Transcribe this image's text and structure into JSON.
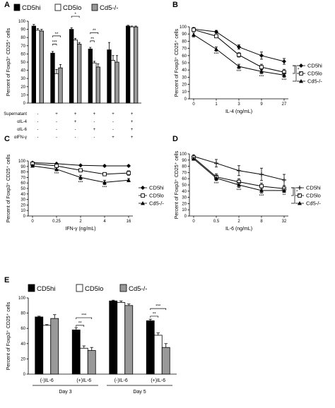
{
  "figure": {
    "panel_labels": [
      "A",
      "B",
      "C",
      "D",
      "E"
    ],
    "colors": {
      "cd5hi": "#000000",
      "cd5lo": "#ffffff",
      "cd5ko": "#999999",
      "edge": "#000000"
    }
  },
  "chart_data": [
    {
      "panel": "A",
      "type": "bar",
      "ylabel": "Percent of Foxp3⁺ CD25⁺ cells",
      "ylim": [
        0,
        100
      ],
      "yticks": [
        "0",
        "10",
        "20",
        "30",
        "40",
        "50",
        "60",
        "70",
        "80",
        "90",
        "100"
      ],
      "legend": [
        "CD5hi",
        "CD5lo",
        "Cd5-/-"
      ],
      "row_labels": [
        "Supernatant",
        "αIL-4",
        "αIL-6",
        "αIFN-γ"
      ],
      "condition_table": [
        [
          "-",
          "-",
          "-",
          "-"
        ],
        [
          "+",
          "-",
          "-",
          "-"
        ],
        [
          "+",
          "+",
          "-",
          "-"
        ],
        [
          "+",
          "-",
          "+",
          "-"
        ],
        [
          "+",
          "-",
          "-",
          "+"
        ],
        [
          "+",
          "+",
          "+",
          "+"
        ]
      ],
      "series": [
        {
          "name": "CD5hi",
          "values": [
            94,
            61,
            90,
            66,
            65,
            94
          ],
          "errors": [
            2,
            2,
            2,
            2,
            9,
            1
          ]
        },
        {
          "name": "CD5lo",
          "values": [
            89,
            36,
            77,
            49,
            52,
            93
          ],
          "errors": [
            2,
            5,
            2,
            2,
            6,
            1
          ]
        },
        {
          "name": "Cd5-/-",
          "values": [
            88,
            43,
            72,
            44,
            50,
            93
          ],
          "errors": [
            2,
            4,
            2,
            4,
            8,
            1
          ]
        }
      ],
      "significance": [
        {
          "group": 1,
          "from": 0,
          "to": 1,
          "label": "***",
          "y": 72
        },
        {
          "group": 1,
          "from": 0,
          "to": 2,
          "label": "**",
          "y": 82
        },
        {
          "group": 2,
          "from": 0,
          "to": 2,
          "label": "*",
          "y": 106
        },
        {
          "group": 3,
          "from": 0,
          "to": 1,
          "label": "**",
          "y": 76
        },
        {
          "group": 3,
          "from": 0,
          "to": 2,
          "label": "**",
          "y": 86
        }
      ]
    },
    {
      "panel": "B",
      "type": "line",
      "xlabel": "IL-4 (ng/mL)",
      "ylabel": "Percent of Foxp3⁺ CD25⁺ cells",
      "x": [
        "0",
        "1",
        "3",
        "9",
        "27"
      ],
      "ylim": [
        0,
        100
      ],
      "yticks": [
        "0",
        "10",
        "20",
        "30",
        "40",
        "50",
        "60",
        "70",
        "80",
        "90",
        "100"
      ],
      "series": [
        {
          "name": "CD5hi",
          "marker": "diamond",
          "values": [
            97,
            93,
            72,
            60,
            52
          ],
          "errors": [
            2,
            2,
            3,
            5,
            4
          ]
        },
        {
          "name": "CD5lo",
          "marker": "square",
          "values": [
            96,
            87,
            61,
            44,
            37
          ],
          "errors": [
            2,
            2,
            3,
            4,
            4
          ]
        },
        {
          "name": "Cd5-/-",
          "marker": "triangle",
          "values": [
            89,
            69,
            45,
            38,
            33
          ],
          "errors": [
            3,
            3,
            3,
            3,
            3
          ]
        }
      ],
      "annotations": [
        "***",
        "***",
        "***",
        "***"
      ],
      "bracket_labels": [
        "*",
        "*"
      ]
    },
    {
      "panel": "C",
      "type": "line",
      "xlabel": "IFN-γ (ng/mL)",
      "ylabel": "Percent of Foxp3⁺ CD25⁺ cells",
      "x": [
        "0",
        "0.25",
        "2",
        "4",
        "16"
      ],
      "ylim": [
        0,
        100
      ],
      "yticks": [
        "0",
        "10",
        "20",
        "30",
        "40",
        "50",
        "60",
        "70",
        "80",
        "90",
        "100"
      ],
      "series": [
        {
          "name": "CD5hi",
          "marker": "diamond",
          "values": [
            97,
            95,
            92,
            91,
            91
          ],
          "errors": [
            1,
            1,
            1,
            1,
            1
          ]
        },
        {
          "name": "CD5lo",
          "marker": "square",
          "values": [
            95,
            91,
            83,
            76,
            78
          ],
          "errors": [
            1,
            2,
            2,
            3,
            4
          ]
        },
        {
          "name": "Cd5-/-",
          "marker": "triangle",
          "values": [
            91,
            85,
            70,
            61,
            65
          ],
          "errors": [
            2,
            3,
            4,
            4,
            3
          ]
        }
      ],
      "annotations": [
        "***",
        "***",
        "***"
      ]
    },
    {
      "panel": "D",
      "type": "line",
      "xlabel": "IL-6 (ng/mL)",
      "ylabel": "Percent of Foxp3⁺ CD25⁺ cells",
      "x": [
        "0",
        "0.5",
        "2",
        "8",
        "32"
      ],
      "ylim": [
        0,
        100
      ],
      "yticks": [
        "0",
        "10",
        "20",
        "30",
        "40",
        "50",
        "60",
        "70",
        "80",
        "90",
        "100"
      ],
      "series": [
        {
          "name": "CD5hi",
          "marker": "plus",
          "values": [
            96,
            85,
            73,
            67,
            58
          ],
          "errors": [
            2,
            6,
            8,
            10,
            9
          ]
        },
        {
          "name": "CD5lo",
          "marker": "square",
          "values": [
            94,
            63,
            55,
            48,
            44
          ],
          "errors": [
            2,
            5,
            5,
            5,
            5
          ]
        },
        {
          "name": "Cd5-/-",
          "marker": "triangle",
          "values": [
            92,
            61,
            50,
            41,
            41
          ],
          "errors": [
            2,
            4,
            4,
            4,
            3
          ]
        }
      ],
      "annotations": [
        "***",
        "***",
        "***",
        "**"
      ],
      "bracket_labels": [
        "*",
        "*"
      ]
    },
    {
      "panel": "E",
      "type": "bar",
      "ylabel": "Percent of Foxp3⁺ CD25⁺ cells",
      "ylim": [
        0,
        100
      ],
      "yticks": [
        "0",
        "20",
        "40",
        "60",
        "80",
        "100"
      ],
      "legend": [
        "CD5hi",
        "CD5lo",
        "Cd5-/-"
      ],
      "categories": [
        "(-)IL-6",
        "(+)IL-6",
        "(-)IL-6",
        "(+)IL-6"
      ],
      "day_labels": [
        "Day 3",
        "Day 5"
      ],
      "series": [
        {
          "name": "CD5hi",
          "values": [
            75,
            58,
            96,
            70
          ],
          "errors": [
            1,
            3,
            1,
            2
          ]
        },
        {
          "name": "CD5lo",
          "values": [
            64,
            34,
            94,
            51
          ],
          "errors": [
            1,
            3,
            2,
            3
          ]
        },
        {
          "name": "Cd5-/-",
          "values": [
            73,
            31,
            90,
            35
          ],
          "errors": [
            5,
            4,
            2,
            5
          ]
        }
      ],
      "significance": [
        {
          "group": 1,
          "from": 0,
          "to": 1,
          "label": "**",
          "y": 64
        },
        {
          "group": 1,
          "from": 0,
          "to": 2,
          "label": "***",
          "y": 74
        },
        {
          "group": 3,
          "from": 0,
          "to": 1,
          "label": "**",
          "y": 76
        },
        {
          "group": 3,
          "from": 0,
          "to": 2,
          "label": "***",
          "y": 86
        }
      ]
    }
  ]
}
